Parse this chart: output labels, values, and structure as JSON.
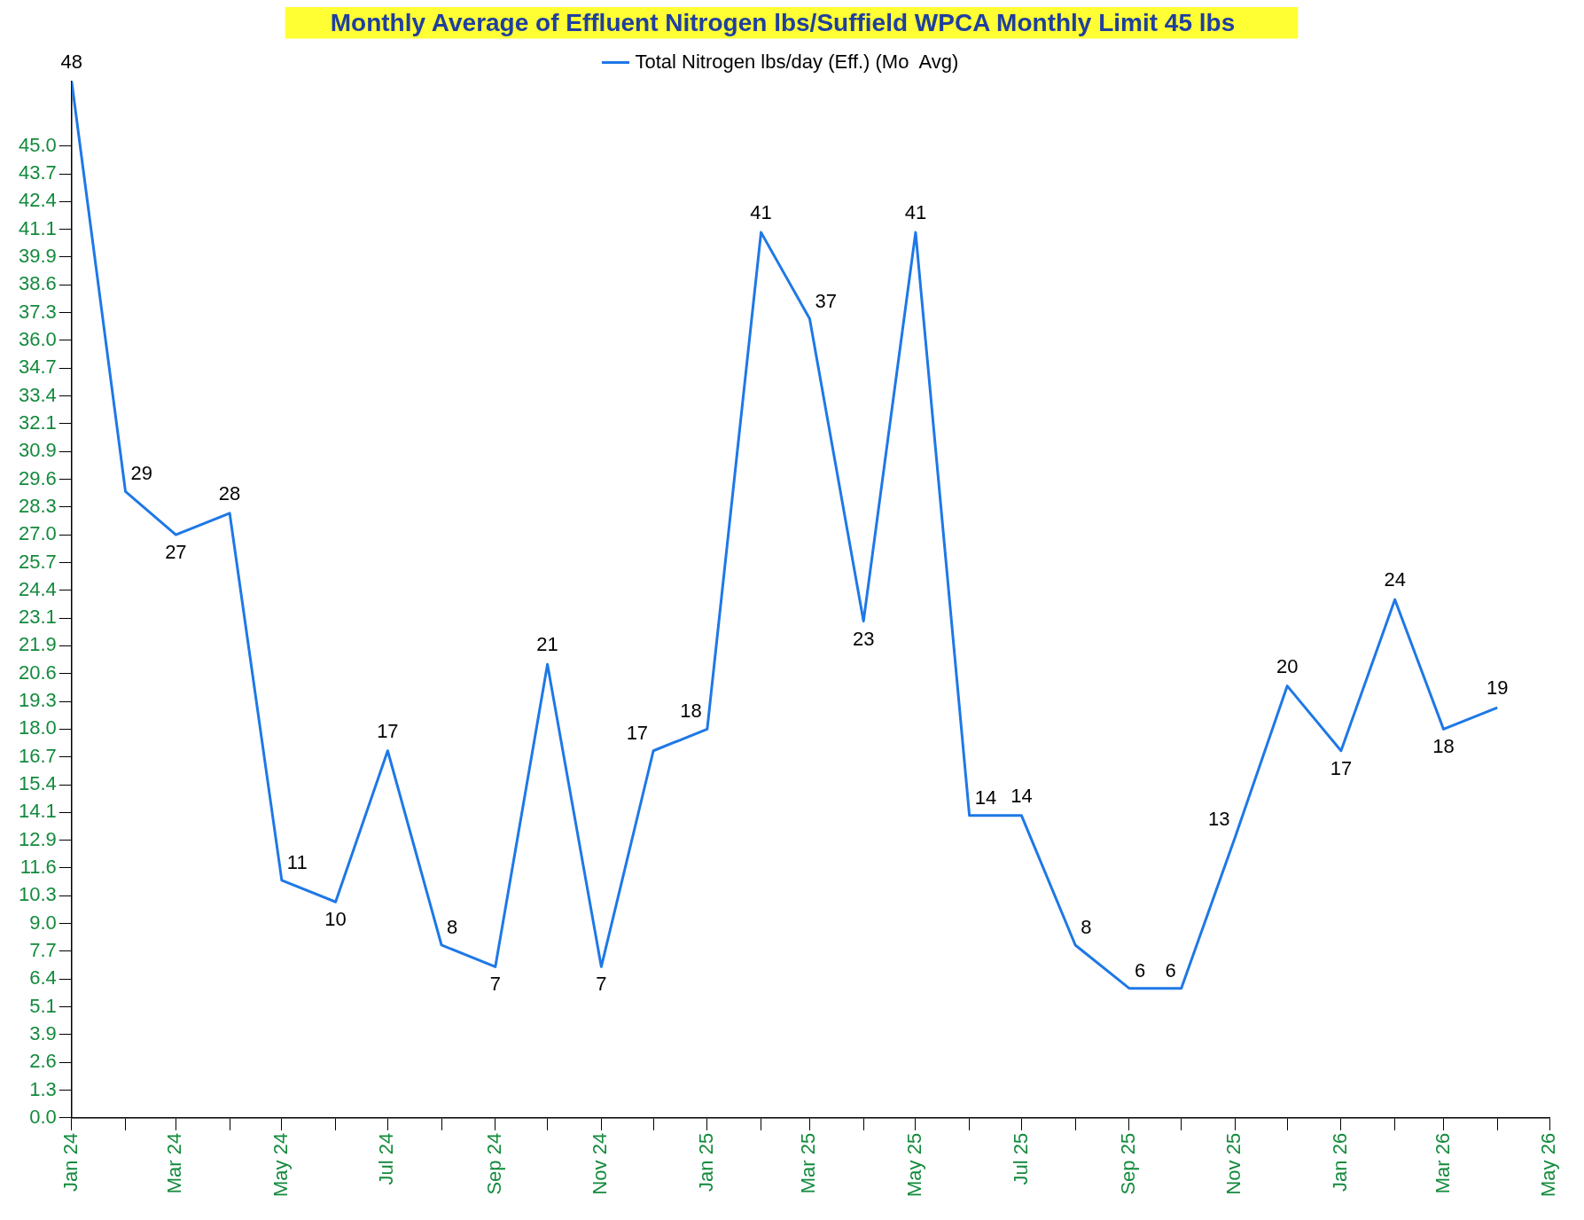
{
  "chart_data": {
    "type": "line",
    "title": "Monthly Average of Effluent Nitrogen lbs/Suffield WPCA Monthly Limit 45 lbs",
    "x": [
      "2024-01",
      "2024-02",
      "2024-03",
      "2024-04",
      "2024-05",
      "2024-06",
      "2024-07",
      "2024-08",
      "2024-09",
      "2024-10",
      "2024-11",
      "2024-12",
      "2025-01",
      "2025-02",
      "2025-03",
      "2025-04",
      "2025-05",
      "2025-06",
      "2025-07",
      "2025-08",
      "2025-09",
      "2025-10",
      "2025-11",
      "2025-12",
      "2026-01",
      "2026-02",
      "2026-03",
      "2026-04"
    ],
    "series": [
      {
        "name": "Total Nitrogen lbs/day (Eff.) (Mo  Avg)",
        "color": "#1e78e6",
        "values": [
          48,
          29,
          27,
          28,
          11,
          10,
          17,
          8,
          7,
          21,
          7,
          17,
          18,
          41,
          37,
          23,
          41,
          14,
          14,
          8,
          6,
          6,
          13,
          20,
          17,
          24,
          18,
          19
        ]
      }
    ],
    "data_labels": true,
    "legend": "top",
    "grid": false,
    "marker": "none",
    "line_style": "solid",
    "xlim": [
      "2024-01",
      "2026-05"
    ],
    "xticks": [
      {
        "value": "2024-01",
        "label": "Jan 24"
      },
      {
        "value": "2024-02",
        "label": null
      },
      {
        "value": "2024-03",
        "label": "Mar 24"
      },
      {
        "value": "2024-04",
        "label": null
      },
      {
        "value": "2024-05",
        "label": "May 24"
      },
      {
        "value": "2024-06",
        "label": null
      },
      {
        "value": "2024-07",
        "label": "Jul 24"
      },
      {
        "value": "2024-08",
        "label": null
      },
      {
        "value": "2024-09",
        "label": "Sep 24"
      },
      {
        "value": "2024-10",
        "label": null
      },
      {
        "value": "2024-11",
        "label": "Nov 24"
      },
      {
        "value": "2024-12",
        "label": null
      },
      {
        "value": "2025-01",
        "label": "Jan 25"
      },
      {
        "value": "2025-02",
        "label": null
      },
      {
        "value": "2025-03",
        "label": "Mar 25"
      },
      {
        "value": "2025-04",
        "label": null
      },
      {
        "value": "2025-05",
        "label": "May 25"
      },
      {
        "value": "2025-06",
        "label": null
      },
      {
        "value": "2025-07",
        "label": "Jul 25"
      },
      {
        "value": "2025-08",
        "label": null
      },
      {
        "value": "2025-09",
        "label": "Sep 25"
      },
      {
        "value": "2025-10",
        "label": null
      },
      {
        "value": "2025-11",
        "label": "Nov 25"
      },
      {
        "value": "2025-12",
        "label": null
      },
      {
        "value": "2026-01",
        "label": "Jan 26"
      },
      {
        "value": "2026-02",
        "label": null
      },
      {
        "value": "2026-03",
        "label": "Mar 26"
      },
      {
        "value": "2026-04",
        "label": null
      },
      {
        "value": "2026-05",
        "label": "May 26"
      }
    ],
    "ylim": [
      0,
      48
    ],
    "yticks": [
      {
        "value": 0,
        "label": "0.0"
      },
      {
        "value": 1.286,
        "label": "1.3"
      },
      {
        "value": 2.571,
        "label": "2.6"
      },
      {
        "value": 3.857,
        "label": "3.9"
      },
      {
        "value": 5.143,
        "label": "5.1"
      },
      {
        "value": 6.429,
        "label": "6.4"
      },
      {
        "value": 7.714,
        "label": "7.7"
      },
      {
        "value": 9,
        "label": "9.0"
      },
      {
        "value": 10.286,
        "label": "10.3"
      },
      {
        "value": 11.571,
        "label": "11.6"
      },
      {
        "value": 12.857,
        "label": "12.9"
      },
      {
        "value": 14.143,
        "label": "14.1"
      },
      {
        "value": 15.429,
        "label": "15.4"
      },
      {
        "value": 16.714,
        "label": "16.7"
      },
      {
        "value": 18,
        "label": "18.0"
      },
      {
        "value": 19.286,
        "label": "19.3"
      },
      {
        "value": 20.571,
        "label": "20.6"
      },
      {
        "value": 21.857,
        "label": "21.9"
      },
      {
        "value": 23.143,
        "label": "23.1"
      },
      {
        "value": 24.429,
        "label": "24.4"
      },
      {
        "value": 25.714,
        "label": "25.7"
      },
      {
        "value": 27,
        "label": "27.0"
      },
      {
        "value": 28.286,
        "label": "28.3"
      },
      {
        "value": 29.571,
        "label": "29.6"
      },
      {
        "value": 30.857,
        "label": "30.9"
      },
      {
        "value": 32.143,
        "label": "32.1"
      },
      {
        "value": 33.429,
        "label": "33.4"
      },
      {
        "value": 34.714,
        "label": "34.7"
      },
      {
        "value": 36,
        "label": "36.0"
      },
      {
        "value": 37.286,
        "label": "37.3"
      },
      {
        "value": 38.571,
        "label": "38.6"
      },
      {
        "value": 39.857,
        "label": "39.9"
      },
      {
        "value": 41.143,
        "label": "41.1"
      },
      {
        "value": 42.429,
        "label": "42.4"
      },
      {
        "value": 43.714,
        "label": "43.7"
      },
      {
        "value": 45,
        "label": "45.0"
      }
    ]
  }
}
